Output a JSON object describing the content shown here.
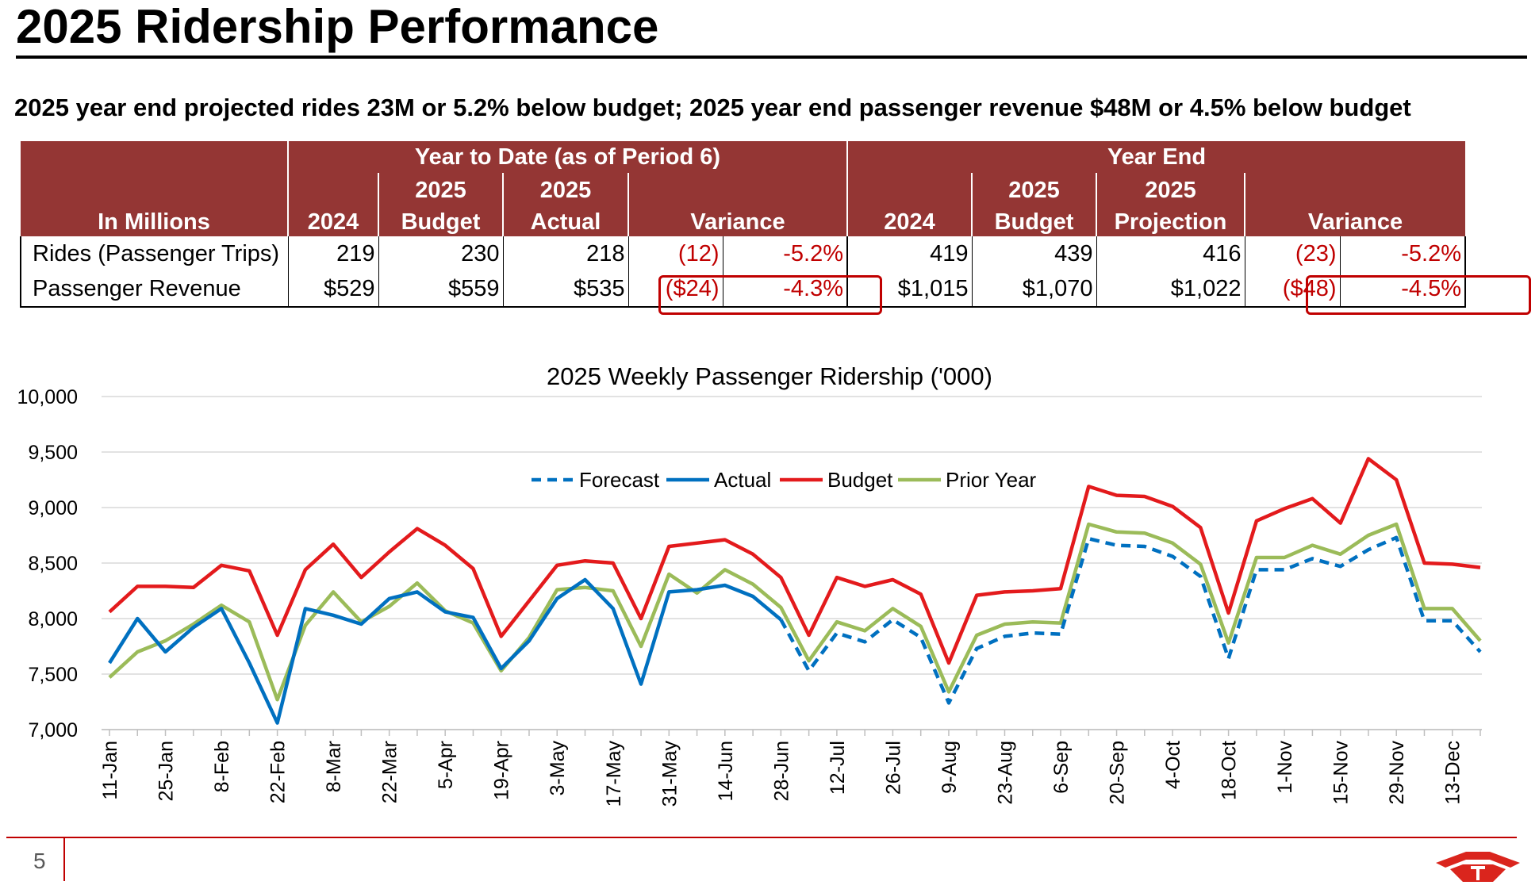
{
  "header": {
    "title": "2025 Ridership Performance",
    "subtitle": "2025 year end projected rides 23M or 5.2% below budget; 2025 year end passenger revenue $48M or 4.5% below budget"
  },
  "table": {
    "ytd_group": "Year to Date (as of Period 6)",
    "ye_group": "Year End",
    "row_header": "In Millions",
    "col_2024": "2024",
    "col_2025_line1": "2025",
    "col_budget": "Budget",
    "col_actual": "Actual",
    "col_projection": "Projection",
    "col_variance": "Variance",
    "rows": [
      {
        "label": "Rides (Passenger Trips)",
        "ytd_2024": "219",
        "ytd_budget": "230",
        "ytd_actual": "218",
        "ytd_var": "(12)",
        "ytd_pct": "-5.2%",
        "ye_2024": "419",
        "ye_budget": "439",
        "ye_proj": "416",
        "ye_var": "(23)",
        "ye_pct": "-5.2%"
      },
      {
        "label": "Passenger Revenue",
        "ytd_2024": "$529",
        "ytd_budget": "$559",
        "ytd_actual": "$535",
        "ytd_var": "($24)",
        "ytd_pct": "-4.3%",
        "ye_2024": "$1,015",
        "ye_budget": "$1,070",
        "ye_proj": "$1,022",
        "ye_var": "($48)",
        "ye_pct": "-4.5%"
      }
    ]
  },
  "colors": {
    "header_fill": "#943634",
    "negative": "#c00000",
    "forecast": "#0070c0",
    "actual": "#0070c0",
    "budget": "#e31a1c",
    "prior_year": "#9bbb59"
  },
  "chart_data": {
    "type": "line",
    "title": "2025 Weekly Passenger Ridership ('000)",
    "xlabel": "",
    "ylabel": "",
    "ylim": [
      7000,
      10000
    ],
    "yticks": [
      7000,
      7500,
      8000,
      8500,
      9000,
      9500,
      10000
    ],
    "ytick_labels": [
      "7,000",
      "7,500",
      "8,000",
      "8,500",
      "9,000",
      "9,500",
      "10,000"
    ],
    "grid": true,
    "legend_position": "top-center",
    "x": [
      "11-Jan",
      "18-Jan",
      "25-Jan",
      "1-Feb",
      "8-Feb",
      "15-Feb",
      "22-Feb",
      "1-Mar",
      "8-Mar",
      "15-Mar",
      "22-Mar",
      "29-Mar",
      "5-Apr",
      "12-Apr",
      "19-Apr",
      "26-Apr",
      "3-May",
      "10-May",
      "17-May",
      "24-May",
      "31-May",
      "7-Jun",
      "14-Jun",
      "21-Jun",
      "28-Jun",
      "5-Jul",
      "12-Jul",
      "19-Jul",
      "26-Jul",
      "2-Aug",
      "9-Aug",
      "16-Aug",
      "23-Aug",
      "30-Aug",
      "6-Sep",
      "13-Sep",
      "20-Sep",
      "27-Sep",
      "4-Oct",
      "11-Oct",
      "18-Oct",
      "25-Oct",
      "1-Nov",
      "8-Nov",
      "15-Nov",
      "22-Nov",
      "29-Nov",
      "6-Dec",
      "13-Dec",
      "20-Dec"
    ],
    "x_tick_labels": [
      "11-Jan",
      "",
      "25-Jan",
      "",
      "8-Feb",
      "",
      "22-Feb",
      "",
      "8-Mar",
      "",
      "22-Mar",
      "",
      "5-Apr",
      "",
      "19-Apr",
      "",
      "3-May",
      "",
      "17-May",
      "",
      "31-May",
      "",
      "14-Jun",
      "",
      "28-Jun",
      "",
      "12-Jul",
      "",
      "26-Jul",
      "",
      "9-Aug",
      "",
      "23-Aug",
      "",
      "6-Sep",
      "",
      "20-Sep",
      "",
      "4-Oct",
      "",
      "18-Oct",
      "",
      "1-Nov",
      "",
      "15-Nov",
      "",
      "29-Nov",
      "",
      "13-Dec",
      ""
    ],
    "series": [
      {
        "name": "Forecast",
        "style": "dashed",
        "start_index": 24,
        "values": [
          null,
          null,
          null,
          null,
          null,
          null,
          null,
          null,
          null,
          null,
          null,
          null,
          null,
          null,
          null,
          null,
          null,
          null,
          null,
          null,
          null,
          null,
          null,
          null,
          7990,
          7530,
          7870,
          7790,
          7990,
          7830,
          7240,
          7730,
          7840,
          7870,
          7860,
          8720,
          8660,
          8650,
          8560,
          8380,
          7640,
          8440,
          8440,
          8540,
          8470,
          8620,
          8730,
          7980,
          7980,
          7700
        ]
      },
      {
        "name": "Actual",
        "style": "solid",
        "values": [
          7600,
          8000,
          7700,
          7920,
          8090,
          7600,
          7060,
          8090,
          8030,
          7950,
          8180,
          8240,
          8060,
          8010,
          7550,
          7800,
          8180,
          8350,
          8090,
          7410,
          8240,
          8260,
          8300,
          8200,
          7990,
          null,
          null,
          null,
          null,
          null,
          null,
          null,
          null,
          null,
          null,
          null,
          null,
          null,
          null,
          null,
          null,
          null,
          null,
          null,
          null,
          null,
          null,
          null,
          null,
          null
        ]
      },
      {
        "name": "Budget",
        "style": "solid",
        "values": [
          8060,
          8290,
          8290,
          8280,
          8480,
          8430,
          7850,
          8440,
          8670,
          8370,
          8600,
          8810,
          8660,
          8450,
          7840,
          8160,
          8480,
          8520,
          8500,
          8000,
          8650,
          8680,
          8710,
          8580,
          8370,
          7850,
          8370,
          8290,
          8350,
          8220,
          7600,
          8210,
          8240,
          8250,
          8270,
          9190,
          9110,
          9100,
          9010,
          8820,
          8050,
          8880,
          8990,
          9080,
          8860,
          9440,
          9250,
          8500,
          8490,
          8460
        ]
      },
      {
        "name": "Prior Year",
        "style": "solid",
        "values": [
          7470,
          7700,
          7800,
          7950,
          8120,
          7970,
          7270,
          7940,
          8240,
          7970,
          8110,
          8320,
          8070,
          7960,
          7530,
          7830,
          8260,
          8280,
          8250,
          7750,
          8400,
          8230,
          8440,
          8310,
          8100,
          7620,
          7970,
          7890,
          8090,
          7930,
          7340,
          7850,
          7950,
          7970,
          7960,
          8850,
          8780,
          8770,
          8680,
          8490,
          7780,
          8550,
          8550,
          8660,
          8580,
          8750,
          8850,
          8090,
          8090,
          7800
        ]
      }
    ]
  },
  "footer": {
    "page_number": "5"
  }
}
